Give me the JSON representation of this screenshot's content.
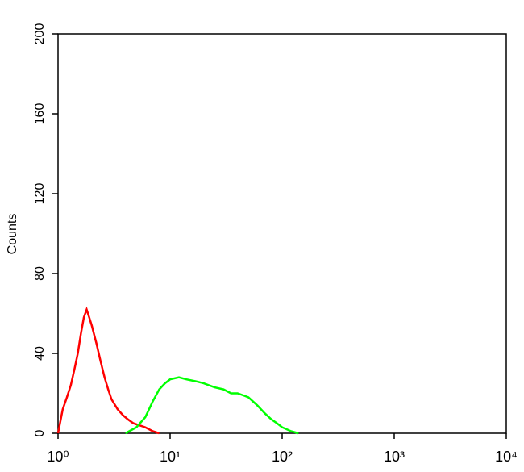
{
  "chart_data": {
    "type": "line",
    "xscale": "log",
    "ylabel": "Counts",
    "xlim": [
      1,
      10000
    ],
    "xticks": [
      {
        "value": 1,
        "label": "10⁰"
      },
      {
        "value": 10,
        "label": "10¹"
      },
      {
        "value": 100,
        "label": "10²"
      },
      {
        "value": 1000,
        "label": "10³"
      },
      {
        "value": 10000,
        "label": "10⁴"
      }
    ],
    "ylim": [
      0,
      200
    ],
    "yticks": [
      0,
      40,
      80,
      120,
      160,
      200
    ],
    "series": [
      {
        "color": "#ff0000",
        "x": [
          1.0,
          1.1,
          1.2,
          1.3,
          1.4,
          1.5,
          1.6,
          1.7,
          1.8,
          1.9,
          2.0,
          2.2,
          2.4,
          2.6,
          2.8,
          3.0,
          3.4,
          3.8,
          4.2,
          4.7,
          5.3,
          6.0,
          7.0,
          8.0
        ],
        "values": [
          0,
          12,
          18,
          24,
          32,
          40,
          50,
          58,
          62,
          58,
          54,
          45,
          36,
          28,
          22,
          17,
          12,
          9,
          7,
          5,
          4,
          3,
          1,
          0
        ]
      },
      {
        "color": "#00ff00",
        "x": [
          4,
          5,
          6,
          7,
          8,
          9,
          10,
          12,
          14,
          17,
          20,
          25,
          30,
          35,
          40,
          45,
          50,
          60,
          70,
          80,
          90,
          100,
          120,
          140
        ],
        "values": [
          0,
          3,
          8,
          16,
          22,
          25,
          27,
          28,
          27,
          26,
          25,
          23,
          22,
          20,
          20,
          19,
          18,
          14,
          10,
          7,
          5,
          3,
          1,
          0
        ]
      }
    ]
  }
}
